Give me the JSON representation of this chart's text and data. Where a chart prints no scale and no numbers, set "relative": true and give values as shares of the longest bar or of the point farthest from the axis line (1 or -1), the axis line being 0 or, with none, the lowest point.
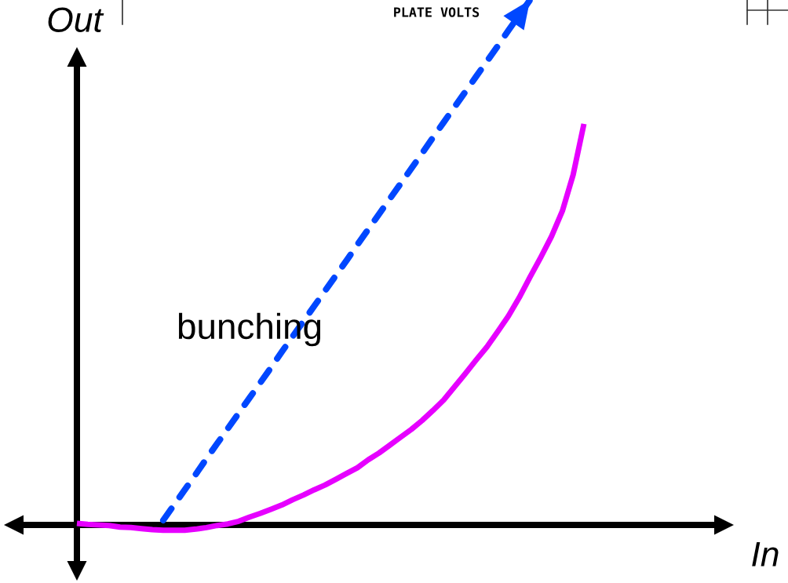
{
  "chart_data": {
    "type": "line",
    "relative": true,
    "xlabel": "In",
    "ylabel": "Out",
    "annotations": [
      "bunching",
      "PLATE VOLTS"
    ],
    "categories": [
      null,
      null,
      null,
      null,
      null,
      null,
      null,
      null,
      null,
      null,
      null,
      null,
      null,
      null,
      null,
      null,
      null,
      null,
      null,
      null,
      null,
      null,
      null,
      null,
      null,
      null,
      null,
      null,
      null,
      null,
      null,
      null,
      null,
      null,
      null,
      null,
      null,
      null,
      null,
      null,
      null,
      null,
      null,
      null,
      null,
      null,
      null,
      null
    ],
    "series": [
      {
        "color": "#e600ff",
        "line_style": "solid",
        "values": [
          0.003,
          0.001,
          0.0,
          -0.001,
          -0.004,
          -0.005,
          -0.007,
          -0.009,
          -0.01,
          -0.01,
          -0.01,
          -0.008,
          -0.005,
          -0.001,
          0.002,
          0.007,
          0.015,
          0.022,
          0.03,
          0.038,
          0.048,
          0.057,
          0.067,
          0.076,
          0.087,
          0.098,
          0.109,
          0.124,
          0.137,
          0.152,
          0.167,
          0.182,
          0.199,
          0.218,
          0.238,
          0.263,
          0.288,
          0.314,
          0.339,
          0.368,
          0.398,
          0.433,
          0.472,
          0.51,
          0.55,
          0.598,
          0.667,
          0.764
        ]
      },
      {
        "color": "#0047ff",
        "line_style": "dashed",
        "values": [
          null,
          null,
          null,
          null,
          null,
          null,
          null,
          null,
          0.009,
          0.038,
          0.067,
          0.096,
          0.126,
          0.155,
          0.184,
          0.213,
          0.242,
          0.271,
          0.3,
          0.33,
          0.359,
          0.388,
          0.417,
          0.446,
          0.475,
          0.504,
          0.534,
          0.563,
          0.592,
          0.621,
          0.65,
          0.679,
          0.708,
          0.738,
          0.767,
          0.796,
          0.825,
          0.854,
          0.883,
          0.912,
          0.942,
          0.971,
          1.0,
          null,
          null,
          null,
          null,
          null
        ]
      }
    ]
  }
}
